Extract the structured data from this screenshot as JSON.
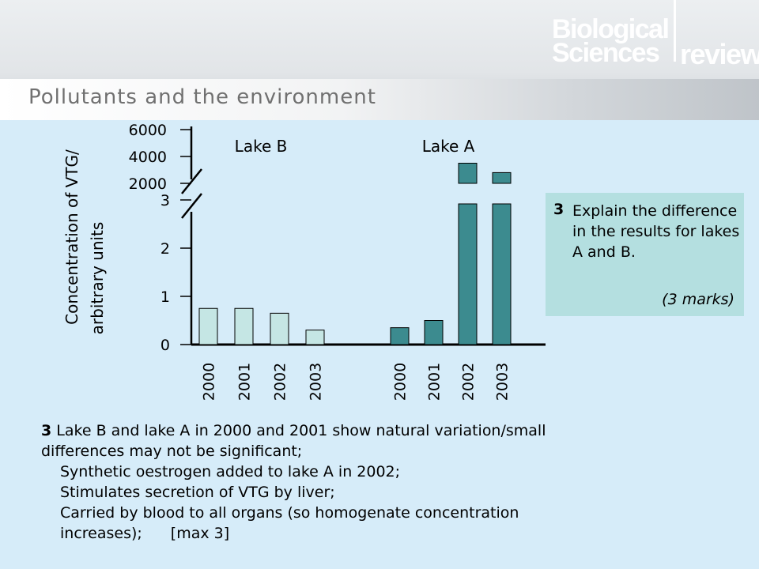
{
  "header": {
    "title": "Pollutants and the environment",
    "logo": {
      "line1": "Biological",
      "line2": "Sciences",
      "line3": "review"
    }
  },
  "chart_data": {
    "type": "bar",
    "ylabel_line1": "Concentration of VTG/",
    "ylabel_line2": "arbitrary units",
    "y_ticks_lower": [
      "0",
      "1",
      "2",
      "3"
    ],
    "y_ticks_upper": [
      "2000",
      "4000",
      "6000"
    ],
    "y_axis_broken": true,
    "groups": [
      {
        "name": "Lake B",
        "categories": [
          "2000",
          "2001",
          "2002",
          "2003"
        ],
        "values": [
          0.75,
          0.75,
          0.65,
          0.3
        ],
        "color": "#c5e6e4"
      },
      {
        "name": "Lake A",
        "categories": [
          "2000",
          "2001",
          "2002",
          "2003"
        ],
        "values": [
          0.35,
          0.5,
          3500,
          2800
        ],
        "color": "#3c8b8f"
      }
    ]
  },
  "question": {
    "number": "3",
    "text": "Explain the difference in the results for lakes A and B.",
    "marks": "(3 marks)"
  },
  "answer": {
    "number": "3",
    "line1": "Lake B and lake A in 2000 and 2001 show natural variation/small",
    "line2": "differences may not be significant;",
    "line3": "Synthetic oestrogen added to lake A in 2002;",
    "line4": "Stimulates secretion of VTG by liver;",
    "line5": "Carried by blood to all organs (so homogenate concentration",
    "line6": "increases);",
    "max": "[max 3]"
  },
  "colors": {
    "background": "#d6ecf9",
    "lake_b_bar": "#c5e6e4",
    "lake_a_bar": "#3c8b8f",
    "question_box": "#b4dfe0"
  }
}
